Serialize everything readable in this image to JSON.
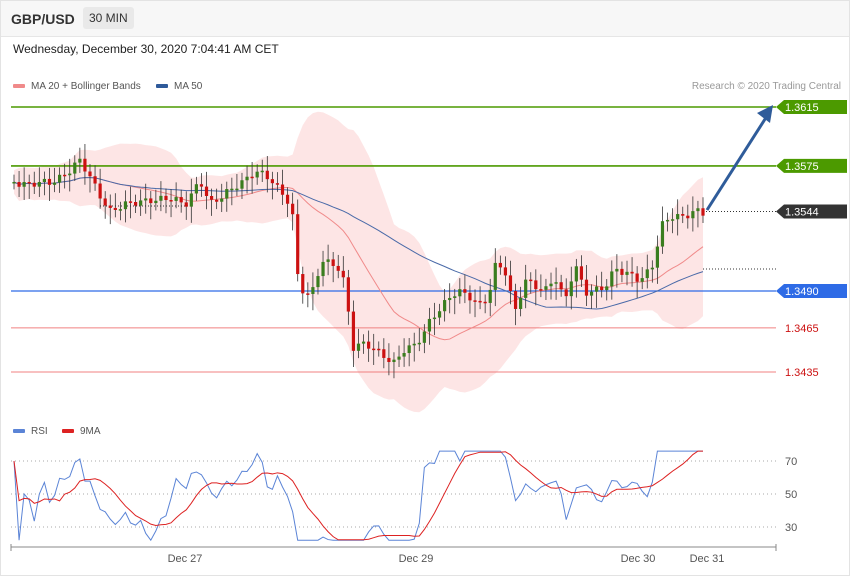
{
  "header": {
    "symbol": "GBP/USD",
    "timeframe": "30 MIN"
  },
  "datetime": "Wednesday, December 30, 2020 7:04:41 AM CET",
  "legend": {
    "main": [
      {
        "label": "MA 20 + Bollinger Bands",
        "color": "#f08a8a"
      },
      {
        "label": "MA 50",
        "color": "#2f5a9a"
      }
    ],
    "rsi": [
      {
        "label": "RSI",
        "color": "#5b84d6"
      },
      {
        "label": "9MA",
        "color": "#dd2222"
      }
    ]
  },
  "credit": "Research © 2020 Trading Central",
  "colors": {
    "resistance": "#4c9a00",
    "pivot": "#2e6be6",
    "support": "#f08080",
    "current": "#333333",
    "candle_up": "#3a7d1e",
    "candle_down": "#cc1111",
    "band_fill": "#fde0e0",
    "arrow": "#2f5c9a"
  },
  "chart_data": [
    {
      "type": "candlestick",
      "title": "GBP/USD",
      "y_range": [
        1.3395,
        1.364
      ],
      "x_labels": [
        "Dec 27",
        "Dec 29",
        "Dec 30",
        "Dec 31"
      ],
      "levels": [
        {
          "value": 1.3615,
          "label": "1.3615",
          "kind": "resistance"
        },
        {
          "value": 1.3575,
          "label": "1.3575",
          "kind": "resistance"
        },
        {
          "value": 1.3544,
          "label": "1.3544",
          "kind": "current"
        },
        {
          "value": 1.349,
          "label": "1.3490",
          "kind": "pivot"
        },
        {
          "value": 1.3465,
          "label": "1.3465",
          "kind": "support"
        },
        {
          "value": 1.3435,
          "label": "1.3435",
          "kind": "support"
        }
      ],
      "forecast_target": 1.3615
    },
    {
      "type": "line",
      "title": "RSI",
      "y_range": [
        20,
        80
      ],
      "y_ticks": [
        30,
        50,
        70
      ]
    }
  ]
}
